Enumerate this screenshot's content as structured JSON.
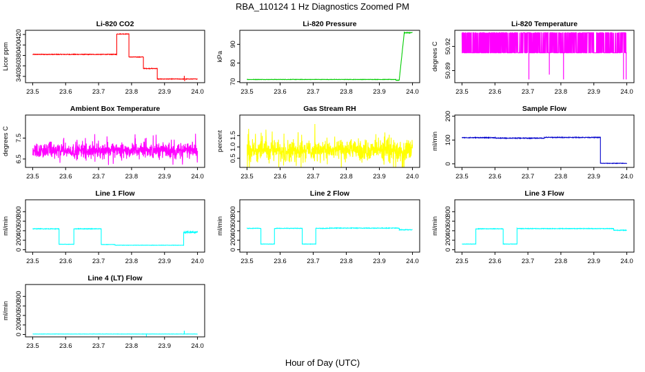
{
  "figure": {
    "title": "RBA_110124  1 Hz Diagnostics Zoomed PM",
    "xlabel": "Hour of Day (UTC)"
  },
  "chart_data": [
    {
      "type": "line",
      "title": "Li-820 CO2",
      "ylabel": "Licor ppm",
      "color": "#ff0000",
      "xlim": [
        23.5,
        24.0
      ],
      "ylim": [
        328,
        428
      ],
      "xticks": [
        "23.5",
        "23.6",
        "23.7",
        "23.8",
        "23.9",
        "24.0"
      ],
      "yticks": [
        "340",
        "360",
        "380",
        "400",
        "420"
      ],
      "segments": [
        {
          "x": [
            23.5,
            23.755
          ],
          "y": 382,
          "noise": 0.6
        },
        {
          "x": [
            23.755,
            23.792
          ],
          "y": 421,
          "noise": 0.5
        },
        {
          "x": [
            23.792,
            23.836
          ],
          "y": 377,
          "noise": 0.5
        },
        {
          "x": [
            23.836,
            23.878
          ],
          "y": 355,
          "noise": 0.5
        },
        {
          "x": [
            23.878,
            24.0
          ],
          "y": 335,
          "noise": 0.5
        }
      ],
      "spikes": [
        {
          "x": 23.96,
          "y": 341
        },
        {
          "x": 23.961,
          "y": 331
        }
      ]
    },
    {
      "type": "line",
      "title": "Li-820 Pressure",
      "ylabel": "kPa",
      "color": "#00cc00",
      "xlim": [
        23.5,
        24.0
      ],
      "ylim": [
        69.5,
        97.5
      ],
      "xticks": [
        "23.5",
        "23.6",
        "23.7",
        "23.8",
        "23.9",
        "24.0"
      ],
      "yticks": [
        "70",
        "80",
        "90"
      ],
      "segments": [
        {
          "x": [
            23.5,
            23.95
          ],
          "y": 71.2,
          "noise": 0.1
        },
        {
          "x": [
            23.95,
            23.96
          ],
          "y": 70.8,
          "noise": 0.1
        }
      ],
      "ramp": {
        "x": [
          23.96,
          23.975
        ],
        "y": [
          71.0,
          96.0
        ]
      },
      "tail": {
        "x": [
          23.975,
          24.0
        ],
        "y": 96.2,
        "noise": 0.2
      }
    },
    {
      "type": "line",
      "title": "Li-820 Temperature",
      "ylabel": "degrees C",
      "color": "#ff00ff",
      "xlim": [
        23.5,
        24.0
      ],
      "ylim": [
        50.875,
        50.94
      ],
      "xticks": [
        "23.5",
        "23.6",
        "23.7",
        "23.8",
        "23.9",
        "24.0"
      ],
      "yticks": [
        "50.89",
        "50.92"
      ],
      "levels": [
        50.912,
        50.937
      ],
      "dips": [
        {
          "x": 23.703,
          "y": 50.879
        },
        {
          "x": 23.765,
          "y": 50.885
        },
        {
          "x": 23.808,
          "y": 50.879
        },
        {
          "x": 23.99,
          "y": 50.879
        },
        {
          "x": 23.998,
          "y": 50.879
        }
      ]
    },
    {
      "type": "line",
      "title": "Ambient Box Temperature",
      "ylabel": "degrees C",
      "color": "#ff00ff",
      "xlim": [
        23.5,
        24.0
      ],
      "ylim": [
        6.1,
        8.6
      ],
      "xticks": [
        "23.5",
        "23.6",
        "23.7",
        "23.8",
        "23.9",
        "24.0"
      ],
      "yticks": [
        "6.5",
        "7.5"
      ],
      "noise": {
        "center": 6.9,
        "amp": 0.55
      }
    },
    {
      "type": "line",
      "title": "Gas Stream RH",
      "ylabel": "percent",
      "color": "#ffff00",
      "xlim": [
        23.5,
        24.0
      ],
      "ylim": [
        0.1,
        2.4
      ],
      "xticks": [
        "23.5",
        "23.6",
        "23.7",
        "23.8",
        "23.9",
        "24.0"
      ],
      "yticks": [
        "0.5",
        "1.0",
        "1.5"
      ],
      "noise": {
        "center": 0.85,
        "amp": 0.7
      }
    },
    {
      "type": "line",
      "title": "Sample Flow",
      "ylabel": "ml/min",
      "color": "#0000cc",
      "xlim": [
        23.5,
        24.0
      ],
      "ylim": [
        -15,
        205
      ],
      "xticks": [
        "23.5",
        "23.6",
        "23.7",
        "23.8",
        "23.9",
        "24.0"
      ],
      "yticks": [
        "0",
        "100",
        "200"
      ],
      "segments": [
        {
          "x": [
            23.5,
            23.6
          ],
          "y": 110,
          "noise": 1.5
        },
        {
          "x": [
            23.6,
            23.75
          ],
          "y": 108,
          "noise": 1.5
        },
        {
          "x": [
            23.75,
            23.92
          ],
          "y": 111,
          "noise": 1.5
        },
        {
          "x": [
            23.92,
            24.0
          ],
          "y": 2,
          "noise": 1.0
        }
      ]
    },
    {
      "type": "line",
      "title": "Line 1 Flow",
      "ylabel": "ml/min",
      "color": "#00ffff",
      "xlim": [
        23.5,
        24.0
      ],
      "ylim": [
        -50,
        1050
      ],
      "xticks": [
        "23.5",
        "23.6",
        "23.7",
        "23.8",
        "23.9",
        "24.0"
      ],
      "yticks": [
        "0",
        "200",
        "400",
        "600",
        "800"
      ],
      "segments": [
        {
          "x": [
            23.5,
            23.58
          ],
          "y": 440,
          "noise": 6
        },
        {
          "x": [
            23.58,
            23.625
          ],
          "y": 115,
          "noise": 3
        },
        {
          "x": [
            23.625,
            23.708
          ],
          "y": 440,
          "noise": 6
        },
        {
          "x": [
            23.708,
            23.75
          ],
          "y": 110,
          "noise": 3
        },
        {
          "x": [
            23.75,
            23.958
          ],
          "y": 95,
          "noise": 3
        },
        {
          "x": [
            23.958,
            24.0
          ],
          "y": 370,
          "noise": 20
        }
      ]
    },
    {
      "type": "line",
      "title": "Line 2 Flow",
      "ylabel": "ml/min",
      "color": "#00ffff",
      "xlim": [
        23.5,
        24.0
      ],
      "ylim": [
        -50,
        1050
      ],
      "xticks": [
        "23.5",
        "23.6",
        "23.7",
        "23.8",
        "23.9",
        "24.0"
      ],
      "yticks": [
        "0",
        "200",
        "400",
        "600",
        "800"
      ],
      "segments": [
        {
          "x": [
            23.5,
            23.542
          ],
          "y": 450,
          "noise": 5
        },
        {
          "x": [
            23.542,
            23.583
          ],
          "y": 120,
          "noise": 3
        },
        {
          "x": [
            23.583,
            23.667
          ],
          "y": 450,
          "noise": 5
        },
        {
          "x": [
            23.667,
            23.708
          ],
          "y": 120,
          "noise": 3
        },
        {
          "x": [
            23.708,
            23.75
          ],
          "y": 450,
          "noise": 5
        },
        {
          "x": [
            23.75,
            23.96
          ],
          "y": 455,
          "noise": 6
        },
        {
          "x": [
            23.96,
            24.0
          ],
          "y": 420,
          "noise": 6
        }
      ]
    },
    {
      "type": "line",
      "title": "Line 3 Flow",
      "ylabel": "ml/min",
      "color": "#00ffff",
      "xlim": [
        23.5,
        24.0
      ],
      "ylim": [
        -50,
        1050
      ],
      "xticks": [
        "23.5",
        "23.6",
        "23.7",
        "23.8",
        "23.9",
        "24.0"
      ],
      "yticks": [
        "0",
        "200",
        "400",
        "600",
        "800"
      ],
      "segments": [
        {
          "x": [
            23.5,
            23.542
          ],
          "y": 120,
          "noise": 3
        },
        {
          "x": [
            23.542,
            23.625
          ],
          "y": 440,
          "noise": 5
        },
        {
          "x": [
            23.625,
            23.667
          ],
          "y": 120,
          "noise": 3
        },
        {
          "x": [
            23.667,
            23.96
          ],
          "y": 445,
          "noise": 6
        },
        {
          "x": [
            23.96,
            24.0
          ],
          "y": 410,
          "noise": 6
        }
      ]
    },
    {
      "type": "line",
      "title": "Line 4 (LT) Flow",
      "ylabel": "ml/min",
      "color": "#00ffff",
      "xlim": [
        23.5,
        24.0
      ],
      "ylim": [
        -50,
        1050
      ],
      "xticks": [
        "23.5",
        "23.6",
        "23.7",
        "23.8",
        "23.9",
        "24.0"
      ],
      "yticks": [
        "0",
        "200",
        "400",
        "600",
        "800"
      ],
      "segments": [
        {
          "x": [
            23.5,
            24.0
          ],
          "y": 10,
          "noise": 2
        }
      ],
      "spikes": [
        {
          "x": 23.845,
          "y": -40
        },
        {
          "x": 23.96,
          "y": 80
        }
      ]
    }
  ]
}
